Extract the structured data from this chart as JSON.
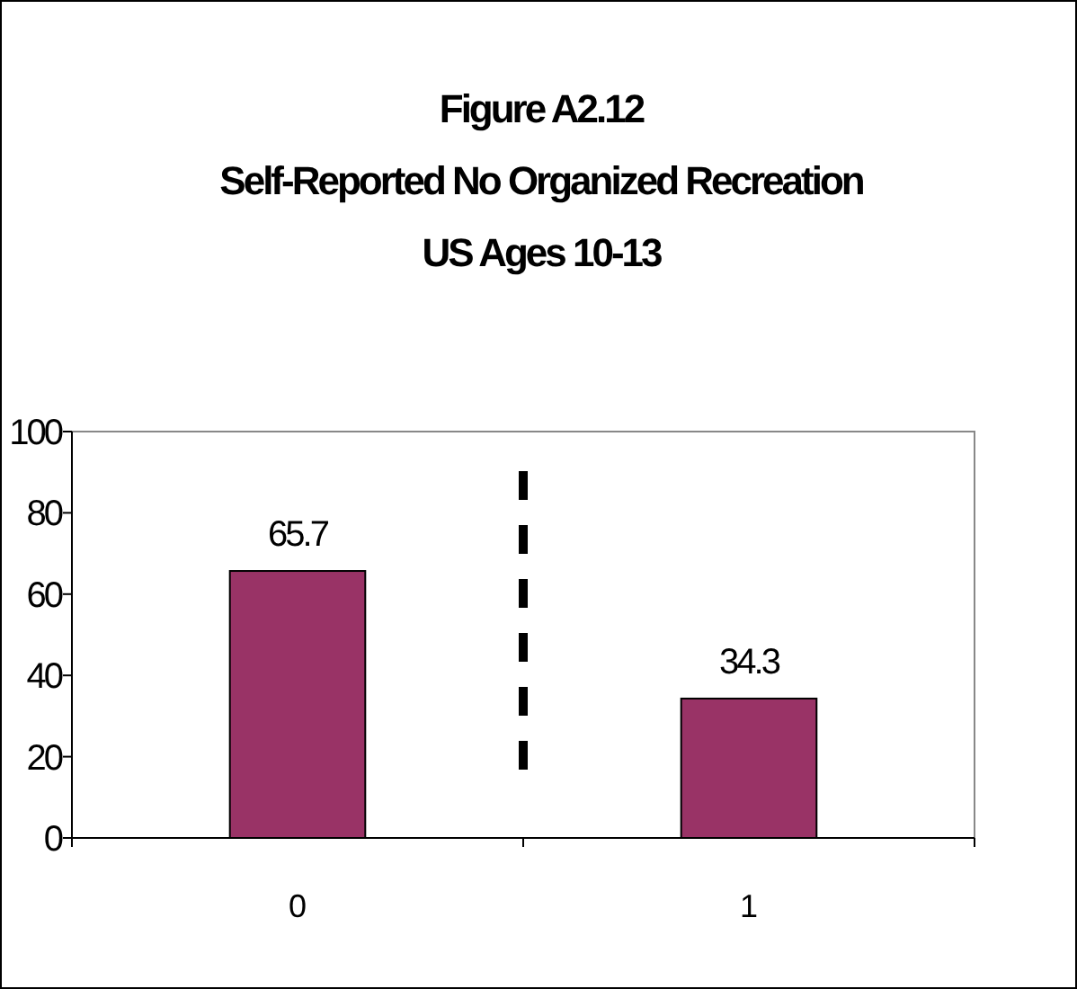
{
  "chart_data": {
    "type": "bar",
    "title": "Figure A2.12\nSelf-Reported No Organized Recreation\nUS Ages 10-13",
    "categories": [
      "0",
      "1"
    ],
    "values": [
      65.7,
      34.3
    ],
    "color": "#993366",
    "ylim": [
      0,
      100
    ],
    "yticks": [
      0,
      20,
      40,
      60,
      80,
      100
    ],
    "grid": false,
    "data_labels": true
  }
}
